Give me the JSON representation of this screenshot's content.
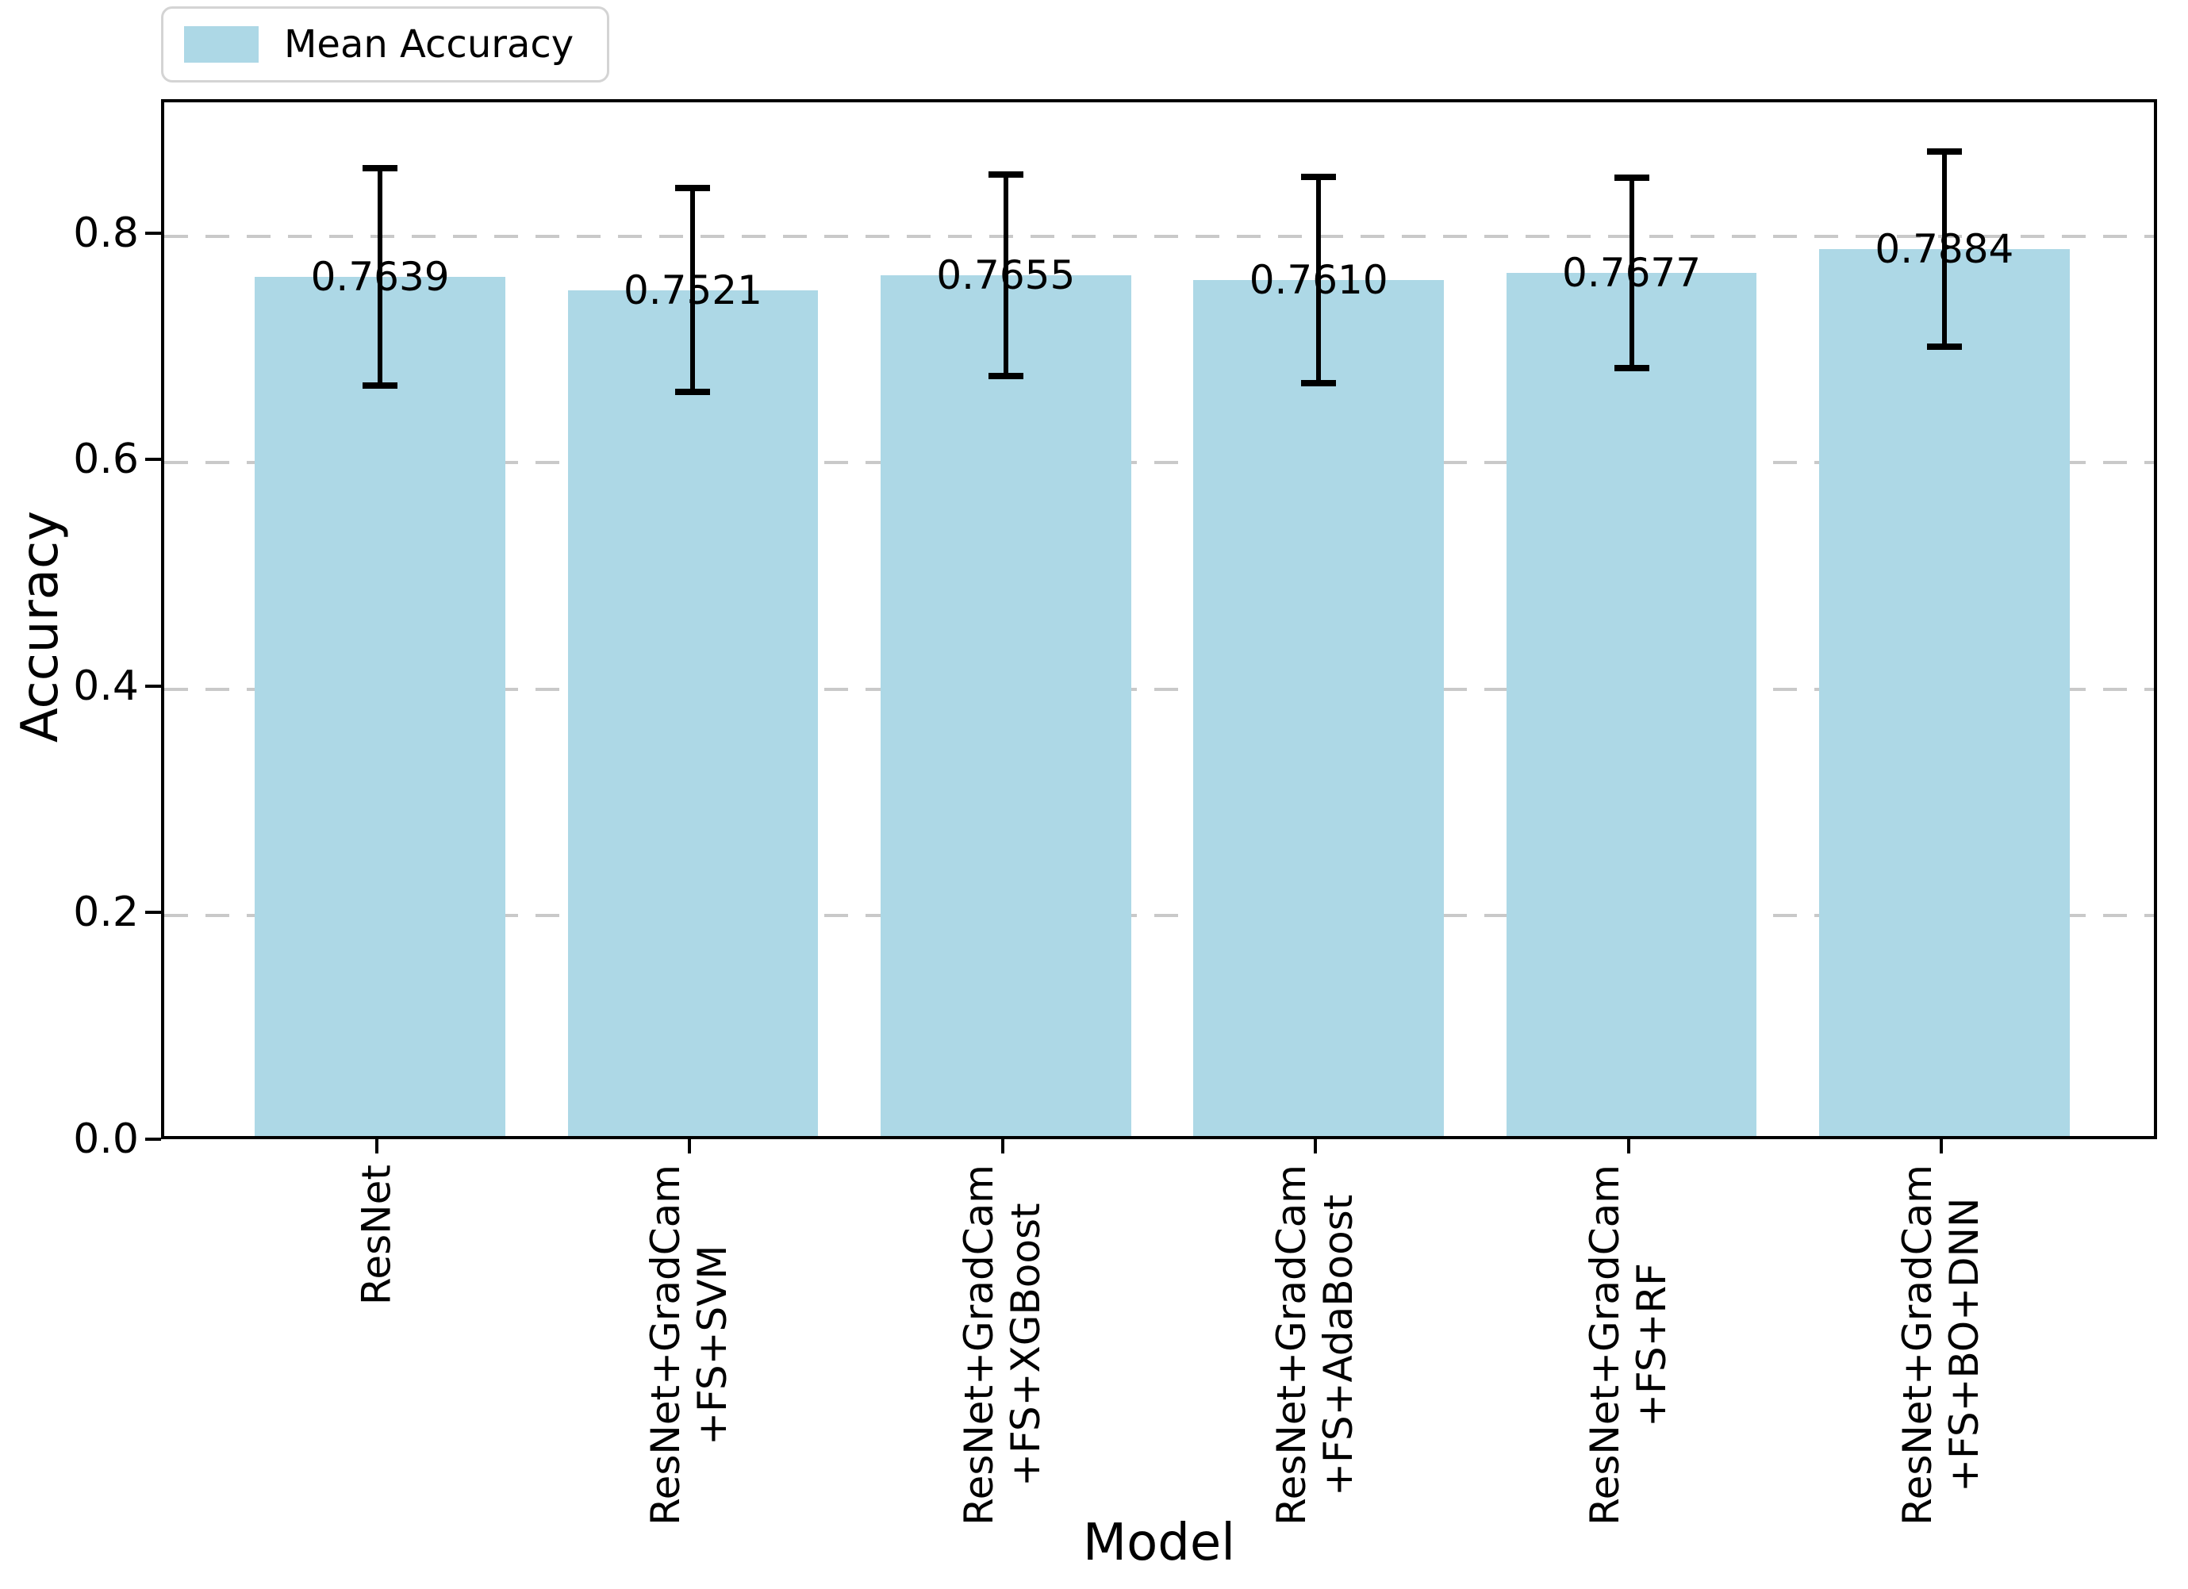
{
  "chart_data": {
    "type": "bar",
    "title": "",
    "xlabel": "Model",
    "ylabel": "Accuracy",
    "ylim": [
      0,
      0.918
    ],
    "ytick_labels": [
      "0.0",
      "0.2",
      "0.4",
      "0.6",
      "0.8"
    ],
    "grid": "horizontal-dashed",
    "legend_position": "upper-left-above-axes",
    "legend": [
      {
        "label": "Mean Accuracy",
        "color": "#ADD8E6"
      }
    ],
    "categories": [
      "ResNet",
      "ResNet+GradCam\n+FS+SVM",
      "ResNet+GradCam\n+FS+XGBoost",
      "ResNet+GradCam\n+FS+AdaBoost",
      "ResNet+GradCam\n+FS+RF",
      "ResNet+GradCam\n+FS+BO+DNN"
    ],
    "series": [
      {
        "name": "Mean Accuracy",
        "values": [
          0.7639,
          0.7521,
          0.7655,
          0.761,
          0.7677,
          0.7884
        ],
        "errors": [
          0.096,
          0.09,
          0.089,
          0.091,
          0.084,
          0.086
        ],
        "value_labels": [
          "0.7639",
          "0.7521",
          "0.7655",
          "0.7610",
          "0.7677",
          "0.7884"
        ]
      }
    ]
  },
  "colors": {
    "bar_fill": "#ADD8E6",
    "error_bar": "#000000",
    "gridline": "#c9c9c9",
    "spine": "#000000",
    "text": "#000000",
    "legend_border": "#d4d4d4",
    "background": "#ffffff"
  }
}
